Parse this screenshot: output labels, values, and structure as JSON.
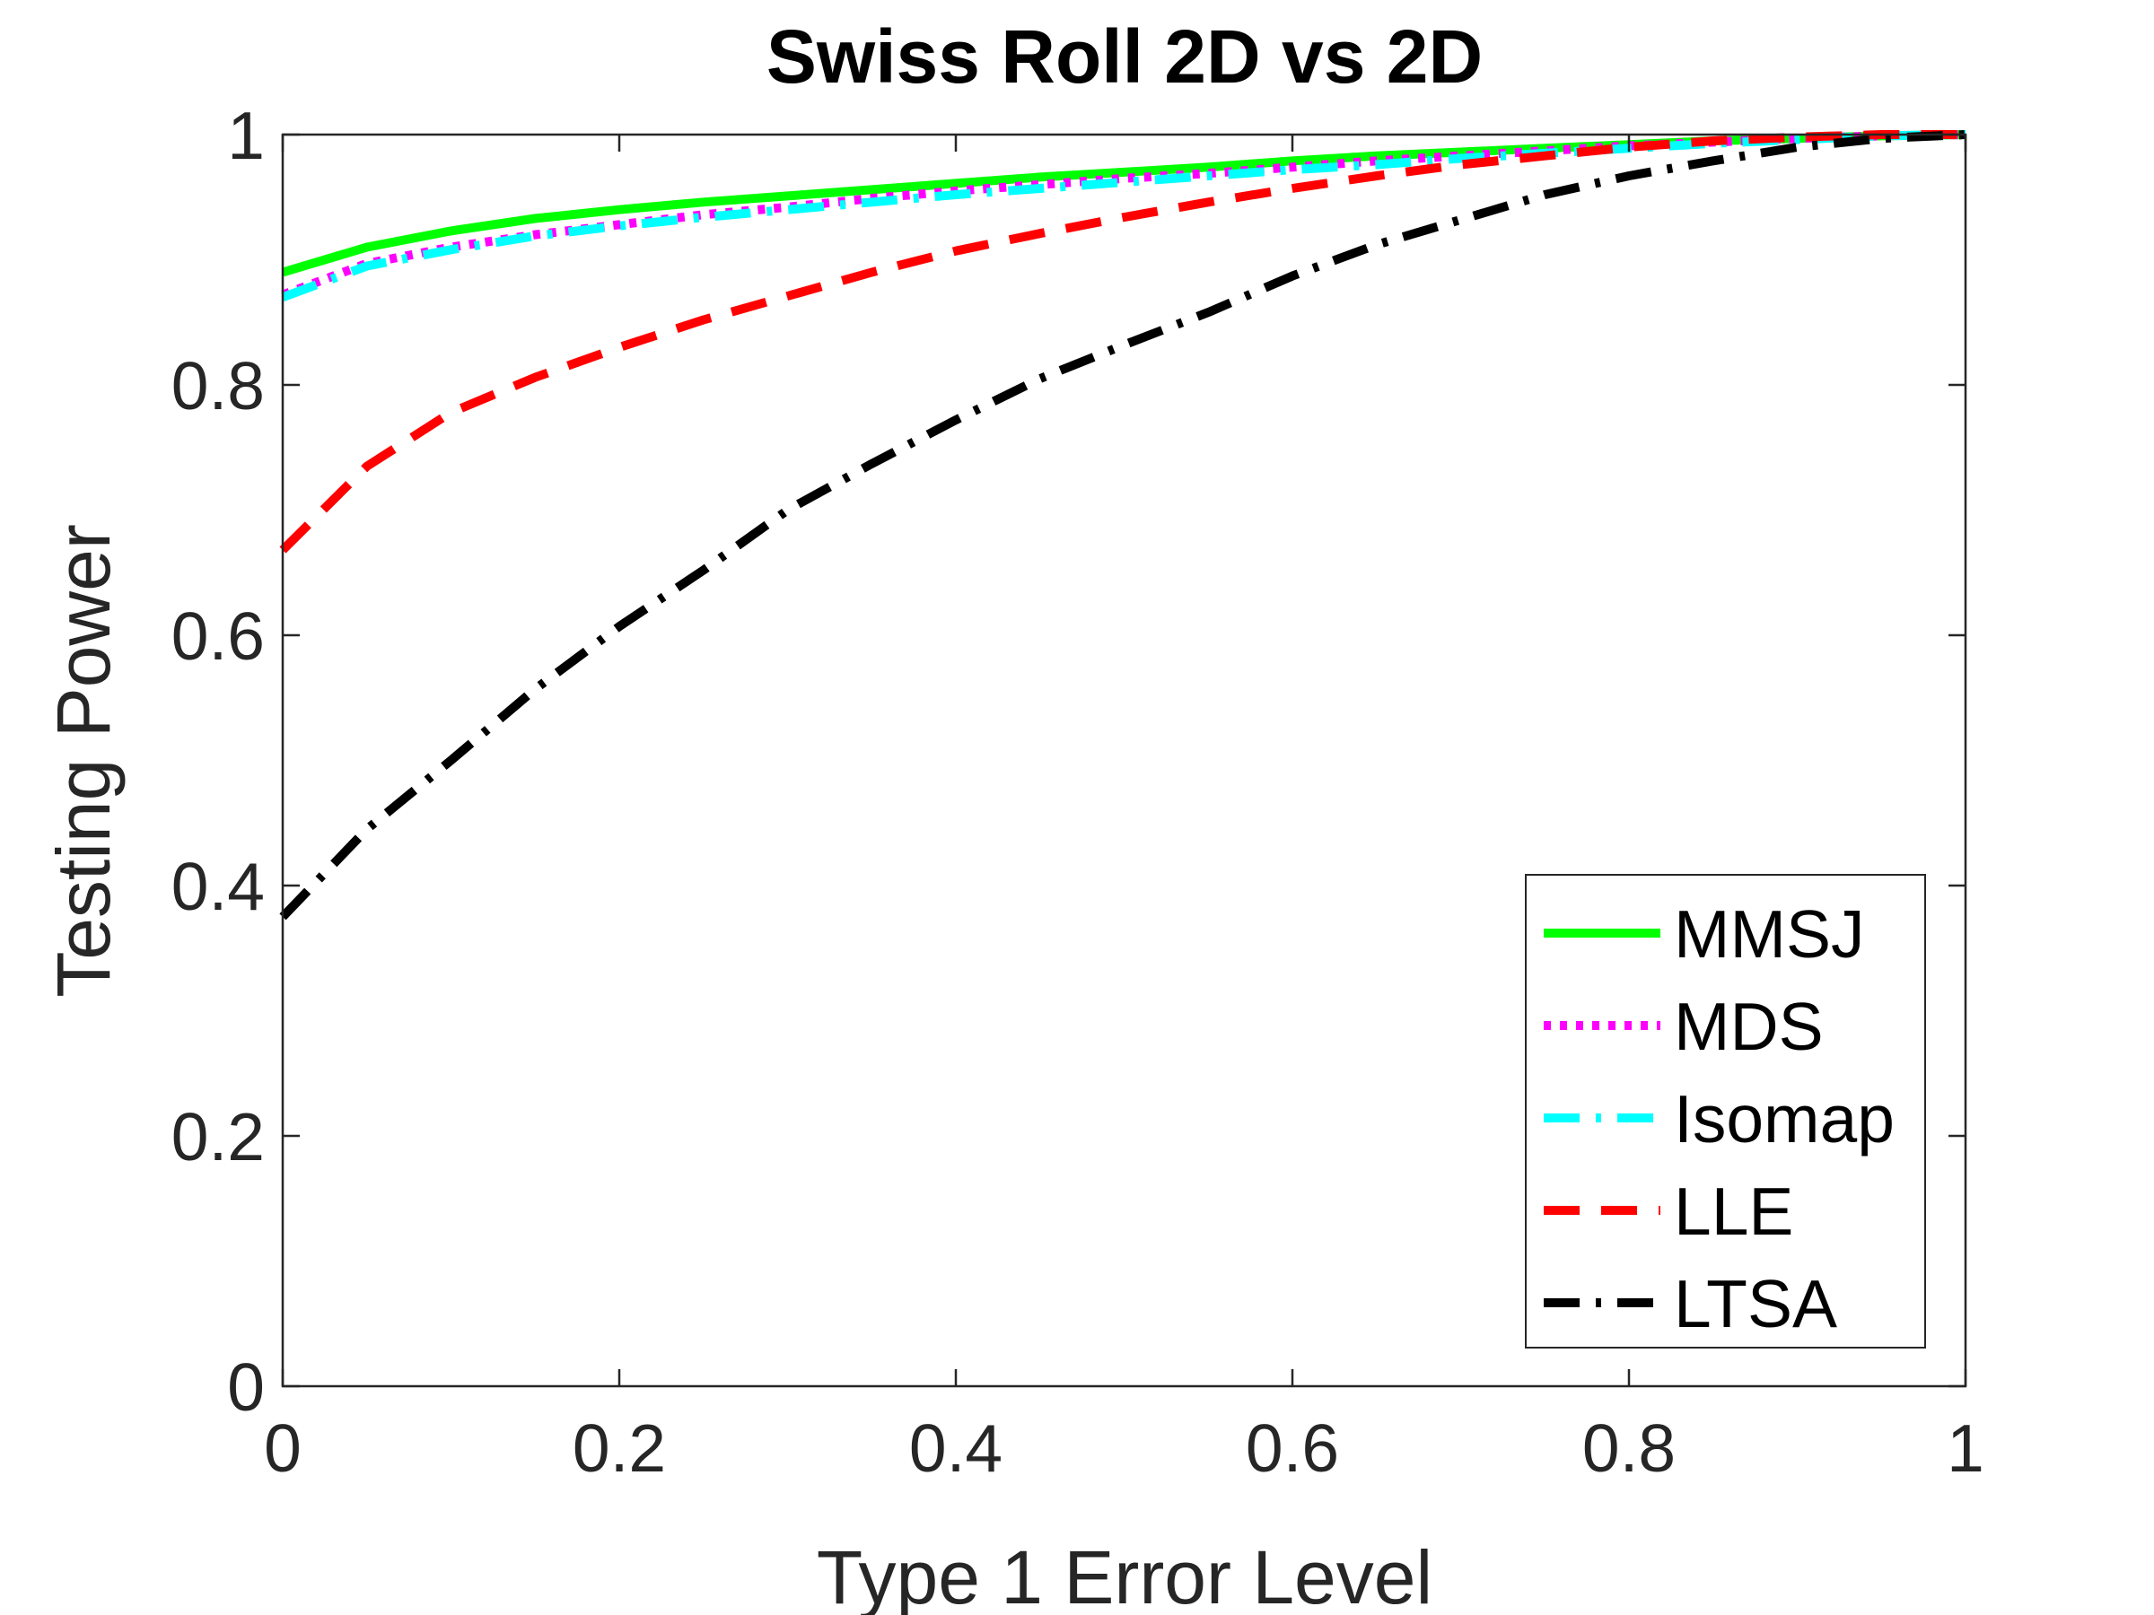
{
  "chart_data": {
    "type": "line",
    "title": "Swiss Roll 2D vs 2D",
    "xlabel": "Type 1 Error Level",
    "ylabel": "Testing Power",
    "xlim": [
      0,
      1
    ],
    "ylim": [
      0,
      1
    ],
    "xticks": [
      0,
      0.2,
      0.4,
      0.6,
      0.8,
      1
    ],
    "yticks": [
      0,
      0.2,
      0.4,
      0.6,
      0.8,
      1
    ],
    "xtick_labels": [
      "0",
      "0.2",
      "0.4",
      "0.6",
      "0.8",
      "1"
    ],
    "ytick_labels": [
      "0",
      "0.2",
      "0.4",
      "0.6",
      "0.8",
      "1"
    ],
    "grid": false,
    "legend_position": "bottom-right",
    "x": [
      0,
      0.05,
      0.1,
      0.15,
      0.2,
      0.25,
      0.3,
      0.35,
      0.4,
      0.45,
      0.5,
      0.55,
      0.6,
      0.65,
      0.7,
      0.75,
      0.8,
      0.85,
      0.9,
      0.95,
      1
    ],
    "series": [
      {
        "name": "MMSJ",
        "color": "#00ff00",
        "style": "solid",
        "values": [
          0.89,
          0.91,
          0.923,
          0.933,
          0.94,
          0.946,
          0.951,
          0.956,
          0.961,
          0.966,
          0.97,
          0.974,
          0.979,
          0.983,
          0.986,
          0.989,
          0.992,
          0.995,
          0.997,
          0.999,
          1.0
        ]
      },
      {
        "name": "MDS",
        "color": "#ff00ff",
        "style": "dotted",
        "values": [
          0.872,
          0.897,
          0.91,
          0.92,
          0.928,
          0.936,
          0.942,
          0.949,
          0.955,
          0.96,
          0.965,
          0.969,
          0.974,
          0.979,
          0.983,
          0.987,
          0.991,
          0.994,
          0.997,
          0.999,
          1.0
        ]
      },
      {
        "name": "Isomap",
        "color": "#00ffff",
        "style": "dashdot",
        "values": [
          0.87,
          0.895,
          0.908,
          0.919,
          0.927,
          0.934,
          0.94,
          0.946,
          0.952,
          0.957,
          0.962,
          0.967,
          0.972,
          0.976,
          0.981,
          0.985,
          0.989,
          0.993,
          0.996,
          0.999,
          1.0
        ]
      },
      {
        "name": "LLE",
        "color": "#ff0000",
        "style": "dashed",
        "values": [
          0.668,
          0.735,
          0.778,
          0.806,
          0.83,
          0.852,
          0.871,
          0.89,
          0.907,
          0.921,
          0.934,
          0.946,
          0.957,
          0.967,
          0.976,
          0.983,
          0.99,
          0.995,
          0.998,
          1.0,
          1.0
        ]
      },
      {
        "name": "LTSA",
        "color": "#000000",
        "style": "dashdot",
        "values": [
          0.375,
          0.445,
          0.5,
          0.557,
          0.607,
          0.652,
          0.7,
          0.737,
          0.772,
          0.805,
          0.832,
          0.858,
          0.887,
          0.912,
          0.932,
          0.952,
          0.967,
          0.979,
          0.99,
          0.997,
          1.0
        ]
      }
    ]
  }
}
